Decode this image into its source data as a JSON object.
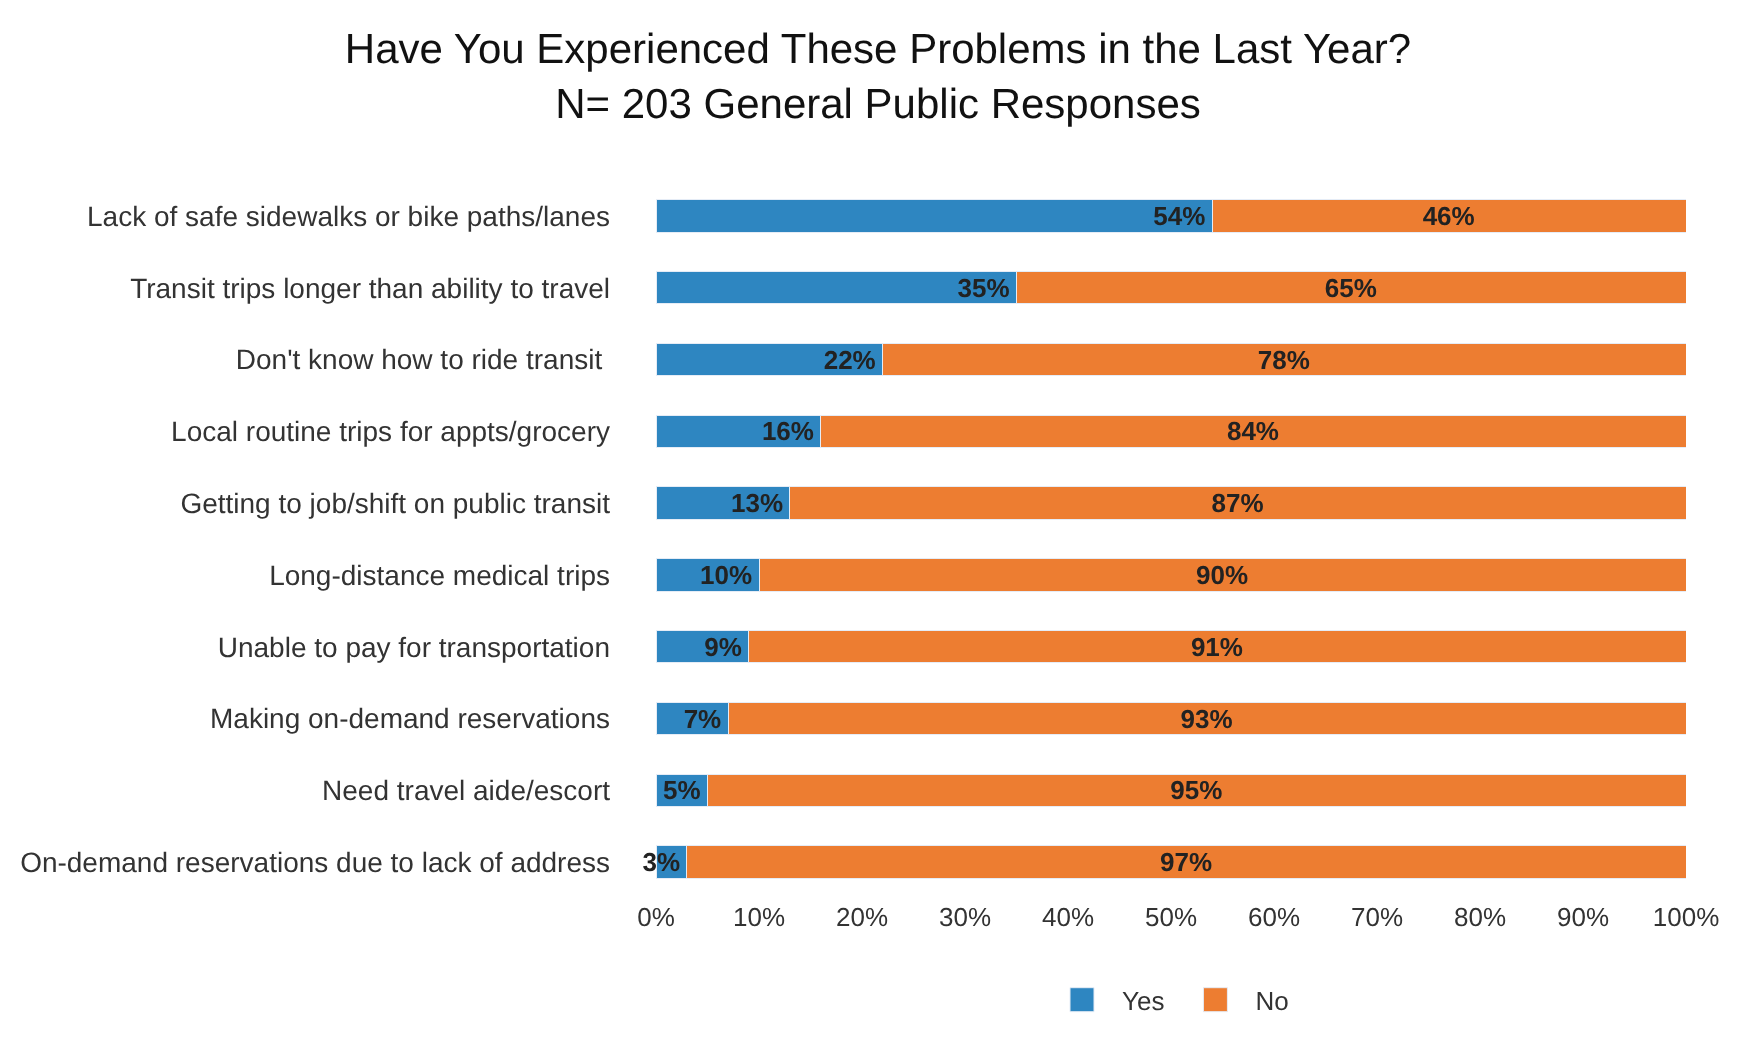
{
  "chart_data": {
    "type": "bar",
    "orientation": "horizontal",
    "stacked": true,
    "title": "Have You Experienced These Problems in the Last Year?\nN= 203 General Public Responses",
    "categories": [
      "Lack of safe sidewalks or bike paths/lanes",
      "Transit trips longer than ability to travel",
      "Don't know how to ride transit ",
      "Local routine trips for appts/grocery",
      "Getting to job/shift on public transit",
      "Long-distance medical trips",
      "Unable to pay for transportation",
      "Making on-demand reservations",
      "Need travel aide/escort",
      "On-demand reservations due to lack of address"
    ],
    "series": [
      {
        "name": "Yes",
        "color": "#2e86c1",
        "values": [
          54,
          35,
          22,
          16,
          13,
          10,
          9,
          7,
          5,
          3
        ],
        "value_labels": [
          "54%",
          "35%",
          "22%",
          "16%",
          "13%",
          "10%",
          "9%",
          "7%",
          "5%",
          "3%"
        ]
      },
      {
        "name": "No",
        "color": "#ed7d31",
        "values": [
          46,
          65,
          78,
          84,
          87,
          90,
          91,
          93,
          95,
          97
        ],
        "value_labels": [
          "46%",
          "65%",
          "78%",
          "84%",
          "87%",
          "90%",
          "91%",
          "93%",
          "95%",
          "97%"
        ]
      }
    ],
    "xlim": [
      0,
      100
    ],
    "xticks": [
      {
        "value": 0,
        "label": "0%"
      },
      {
        "value": 10,
        "label": "10%"
      },
      {
        "value": 20,
        "label": "20%"
      },
      {
        "value": 30,
        "label": "30%"
      },
      {
        "value": 40,
        "label": "40%"
      },
      {
        "value": 50,
        "label": "50%"
      },
      {
        "value": 60,
        "label": "60%"
      },
      {
        "value": 70,
        "label": "70%"
      },
      {
        "value": 80,
        "label": "80%"
      },
      {
        "value": 90,
        "label": "90%"
      },
      {
        "value": 100,
        "label": "100%"
      }
    ],
    "legend": "bottom"
  }
}
